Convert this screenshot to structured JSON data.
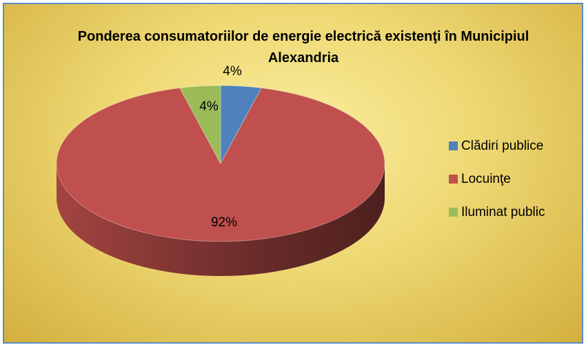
{
  "chart_data": {
    "type": "pie3d",
    "title": "Ponderea consumatoriilor de energie electrică existenţi în Municipiul Alexandria",
    "categories": [
      "Clădiri publice",
      "Locuinţe",
      "Iluminat public"
    ],
    "values": [
      4,
      92,
      4
    ],
    "value_labels": [
      "4%",
      "92%",
      "4%"
    ],
    "colors": [
      "#4f81bd",
      "#c0504d",
      "#9bbb59"
    ],
    "legend": "right"
  }
}
